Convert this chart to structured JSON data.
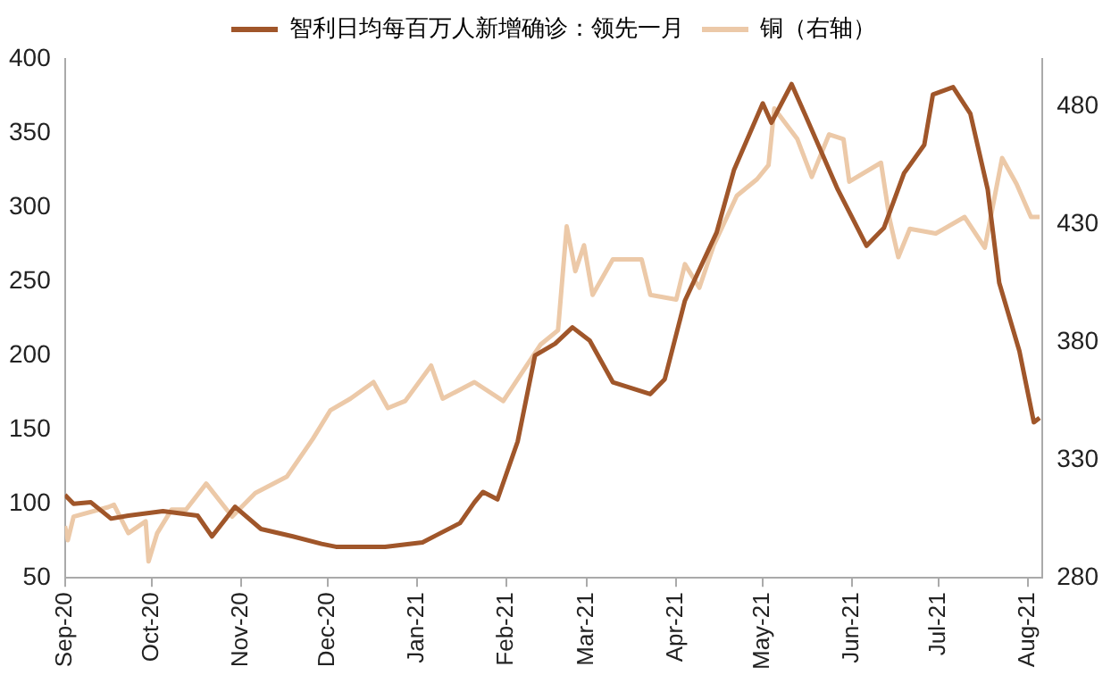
{
  "chart_data": {
    "type": "line",
    "legend": "top",
    "grid": false,
    "marker": "none",
    "line_style": "solid",
    "ylim": [
      50,
      400
    ],
    "yticks": [
      50,
      100,
      150,
      200,
      250,
      300,
      350,
      400
    ],
    "y2lim": [
      280,
      500
    ],
    "y2ticks": [
      280,
      330,
      380,
      430,
      480
    ],
    "xlim": [
      "2020-09-01",
      "2021-08-06"
    ],
    "xticks": [
      {
        "value": "2020-09-01",
        "label": "Sep-20"
      },
      {
        "value": "2020-10-01",
        "label": "Oct-20"
      },
      {
        "value": "2020-11-01",
        "label": "Nov-20"
      },
      {
        "value": "2020-12-01",
        "label": "Dec-20"
      },
      {
        "value": "2021-01-01",
        "label": "Jan-21"
      },
      {
        "value": "2021-02-01",
        "label": "Feb-21"
      },
      {
        "value": "2021-03-01",
        "label": "Mar-21"
      },
      {
        "value": "2021-04-01",
        "label": "Apr-21"
      },
      {
        "value": "2021-05-01",
        "label": "May-21"
      },
      {
        "value": "2021-06-01",
        "label": "Jun-21"
      },
      {
        "value": "2021-07-01",
        "label": "Jul-21"
      },
      {
        "value": "2021-08-01",
        "label": "Aug-21"
      }
    ],
    "series": [
      {
        "name": "智利日均每百万人新增确诊：领先一月",
        "color": "#a0562a",
        "axis": "y",
        "x": [
          "2020-09-01",
          "2020-09-04",
          "2020-09-10",
          "2020-09-17",
          "2020-09-23",
          "2020-10-05",
          "2020-10-17",
          "2020-10-22",
          "2020-10-30",
          "2020-11-08",
          "2020-11-19",
          "2020-11-29",
          "2020-12-04",
          "2020-12-21",
          "2021-01-03",
          "2021-01-08",
          "2021-01-16",
          "2021-01-21",
          "2021-01-24",
          "2021-01-29",
          "2021-02-05",
          "2021-02-11",
          "2021-02-18",
          "2021-02-24",
          "2021-03-02",
          "2021-03-10",
          "2021-03-23",
          "2021-03-28",
          "2021-04-04",
          "2021-04-15",
          "2021-04-21",
          "2021-05-01",
          "2021-05-04",
          "2021-05-11",
          "2021-05-16",
          "2021-05-27",
          "2021-06-06",
          "2021-06-12",
          "2021-06-19",
          "2021-06-26",
          "2021-06-29",
          "2021-07-06",
          "2021-07-12",
          "2021-07-18",
          "2021-07-22",
          "2021-07-29",
          "2021-08-03",
          "2021-08-05"
        ],
        "values": [
          106,
          100,
          101,
          90,
          92,
          95,
          92,
          78,
          98,
          83,
          78,
          73,
          71,
          71,
          74,
          79,
          87,
          101,
          108,
          103,
          142,
          200,
          208,
          219,
          210,
          182,
          174,
          184,
          237,
          283,
          325,
          370,
          357,
          383,
          361,
          312,
          274,
          286,
          323,
          342,
          376,
          381,
          363,
          312,
          249,
          203,
          155,
          158
        ]
      },
      {
        "name": "铜（右轴）",
        "color": "#ecc9a8",
        "axis": "y2",
        "x": [
          "2020-09-01",
          "2020-09-02",
          "2020-09-04",
          "2020-09-16",
          "2020-09-18",
          "2020-09-23",
          "2020-09-29",
          "2020-09-30",
          "2020-10-03",
          "2020-10-08",
          "2020-10-13",
          "2020-10-20",
          "2020-10-29",
          "2020-11-06",
          "2020-11-17",
          "2020-11-26",
          "2020-12-02",
          "2020-12-09",
          "2020-12-17",
          "2020-12-22",
          "2020-12-28",
          "2021-01-06",
          "2021-01-10",
          "2021-01-21",
          "2021-01-31",
          "2021-02-07",
          "2021-02-13",
          "2021-02-19",
          "2021-02-22",
          "2021-02-25",
          "2021-02-28",
          "2021-03-03",
          "2021-03-10",
          "2021-03-20",
          "2021-03-23",
          "2021-04-01",
          "2021-04-04",
          "2021-04-09",
          "2021-04-14",
          "2021-04-22",
          "2021-04-29",
          "2021-05-03",
          "2021-05-05",
          "2021-05-13",
          "2021-05-18",
          "2021-05-24",
          "2021-05-29",
          "2021-05-31",
          "2021-06-11",
          "2021-06-14",
          "2021-06-17",
          "2021-06-21",
          "2021-06-30",
          "2021-07-10",
          "2021-07-17",
          "2021-07-23",
          "2021-07-28",
          "2021-08-02",
          "2021-08-05"
        ],
        "values": [
          302,
          296,
          306,
          310,
          311,
          299,
          304,
          287,
          299,
          309,
          309,
          320,
          306,
          316,
          323,
          339,
          351,
          356,
          363,
          352,
          355,
          370,
          356,
          363,
          355,
          368,
          379,
          385,
          429,
          410,
          421,
          400,
          415,
          415,
          400,
          398,
          413,
          403,
          421,
          442,
          449,
          455,
          479,
          466,
          450,
          468,
          466,
          448,
          456,
          432,
          416,
          428,
          426,
          433,
          420,
          458,
          447,
          433,
          433
        ]
      }
    ]
  }
}
